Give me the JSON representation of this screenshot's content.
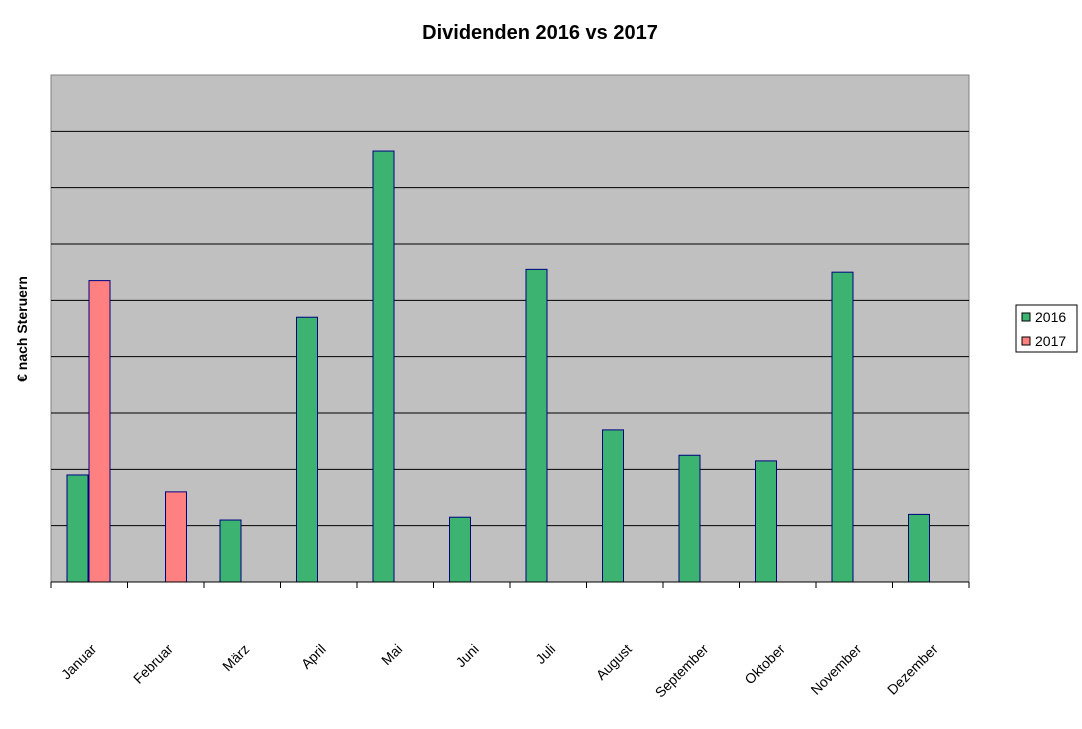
{
  "chart_data": {
    "type": "bar",
    "title": "Dividenden 2016 vs 2017",
    "xlabel": "",
    "ylabel": "€ nach Steruern",
    "categories": [
      "Januar",
      "Februar",
      "März",
      "April",
      "Mai",
      "Juni",
      "Juli",
      "August",
      "September",
      "Oktober",
      "November",
      "Dezember"
    ],
    "series": [
      {
        "name": "2016",
        "color": "#3cb371",
        "values": [
          1.9,
          null,
          1.1,
          4.7,
          7.65,
          1.15,
          5.55,
          2.7,
          2.25,
          2.15,
          5.5,
          1.2
        ]
      },
      {
        "name": "2017",
        "color": "#ff8080",
        "values": [
          5.35,
          1.6,
          null,
          null,
          null,
          null,
          null,
          null,
          null,
          null,
          null,
          null
        ]
      }
    ],
    "ylim": [
      0,
      9
    ],
    "y_ticks_labeled": false,
    "grid": true,
    "plot_background": "#c0c0c0",
    "bar_outline": "#000080",
    "legend_position": "right"
  }
}
